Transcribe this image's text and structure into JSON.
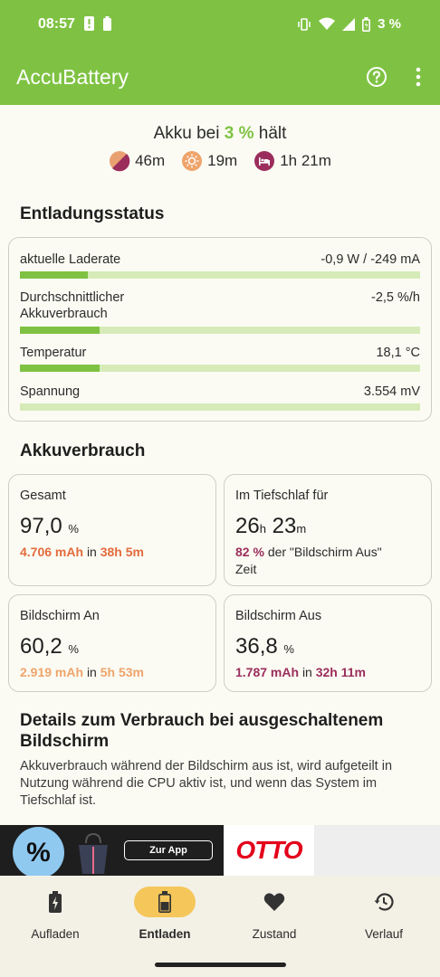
{
  "status_bar": {
    "time": "08:57",
    "battery_text": "3 %"
  },
  "app_bar": {
    "title": "AccuBattery"
  },
  "hold": {
    "prefix": "Akku bei",
    "percent": "3 %",
    "suffix": "hält",
    "items": [
      {
        "icon": "pie-icon",
        "value": "46m"
      },
      {
        "icon": "sun-icon",
        "value": "19m"
      },
      {
        "icon": "sleep-icon",
        "value": "1h 21m"
      }
    ]
  },
  "discharge": {
    "title": "Entladungsstatus",
    "rows": [
      {
        "label": "aktuelle Laderate",
        "value": "-0,9 W / -249 mA",
        "fill": 0.17
      },
      {
        "label": "Durchschnittlicher\nAkkuverbrauch",
        "value": "-2,5 %/h",
        "fill": 0.2
      },
      {
        "label": "Temperatur",
        "value": "18,1 °C",
        "fill": 0.2
      },
      {
        "label": "Spannung",
        "value": "3.554 mV",
        "fill": 0.0
      }
    ]
  },
  "usage": {
    "title": "Akkuverbrauch",
    "total": {
      "label": "Gesamt",
      "value": "97,0",
      "unit": "%",
      "mah": "4.706 mAh",
      "in": "in",
      "time": "38h 5m"
    },
    "deep_sleep": {
      "label": "Im Tiefschlaf für",
      "h": "26",
      "h_unit": "h",
      "m": "23",
      "m_unit": "m",
      "pct": "82 %",
      "text1": "der \"Bildschirm Aus\"",
      "text2": "Zeit"
    },
    "screen_on": {
      "label": "Bildschirm An",
      "value": "60,2",
      "unit": "%",
      "mah": "2.919 mAh",
      "in": "in",
      "time": "5h 53m"
    },
    "screen_off": {
      "label": "Bildschirm Aus",
      "value": "36,8",
      "unit": "%",
      "mah": "1.787 mAh",
      "in": "in",
      "time": "32h 11m"
    }
  },
  "details": {
    "title": "Details zum Verbrauch bei ausgeschaltenem Bildschirm",
    "text": "Akkuverbrauch während der Bildschirm aus ist, wird aufgeteilt in Nutzung während die CPU aktiv ist, und wenn das System im Tiefschlaf ist."
  },
  "ad": {
    "percent_symbol": "%",
    "cta": "Zur App",
    "brand": "OTTO"
  },
  "nav": [
    {
      "label": "Aufladen",
      "icon": "battery-charging-icon",
      "active": false
    },
    {
      "label": "Entladen",
      "icon": "battery-icon",
      "active": true
    },
    {
      "label": "Zustand",
      "icon": "heart-icon",
      "active": false
    },
    {
      "label": "Verlauf",
      "icon": "history-icon",
      "active": false
    }
  ]
}
